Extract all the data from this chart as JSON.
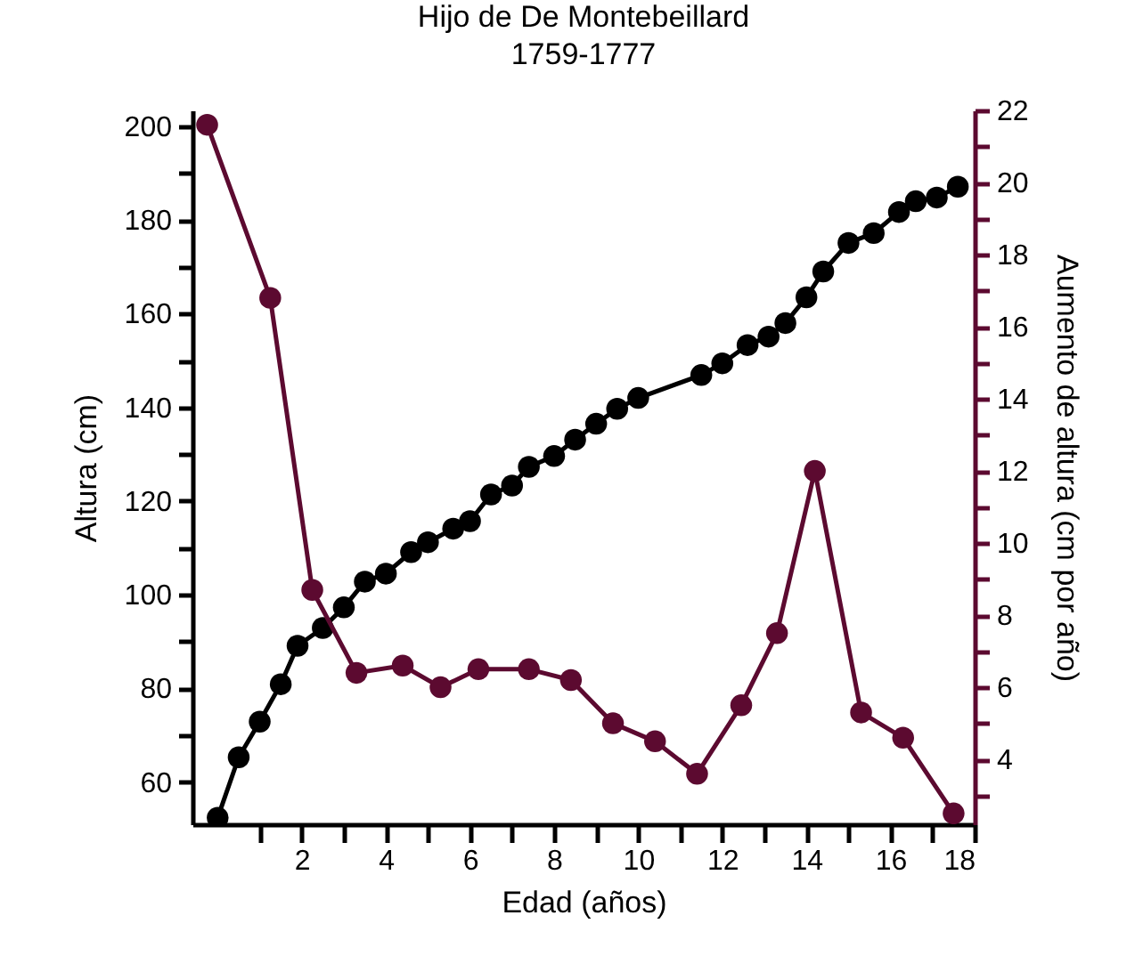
{
  "chart_data": {
    "type": "line",
    "title": "Hijo de De Montebeillard",
    "subtitle": "1759-1777",
    "xlabel": "Edad (años)",
    "ylabel": "Altura (cm)",
    "y2label": "Aumento de altura (cm por año)",
    "xlim": [
      -0.6,
      18
    ],
    "xticks": [
      {
        "value": 1,
        "label": null
      },
      2,
      {
        "value": 3,
        "label": null
      },
      4,
      {
        "value": 5,
        "label": null
      },
      6,
      {
        "value": 7,
        "label": null
      },
      8,
      {
        "value": 9,
        "label": null
      },
      10,
      {
        "value": 11,
        "label": null
      },
      12,
      {
        "value": 13,
        "label": null
      },
      14,
      {
        "value": 15,
        "label": null
      },
      16,
      {
        "value": 17,
        "label": null
      },
      18
    ],
    "ylim": [
      51,
      203.4
    ],
    "yticks": [
      {
        "value": 60,
        "label": "60"
      },
      {
        "value": 70,
        "label": null
      },
      {
        "value": 80,
        "label": "80"
      },
      {
        "value": 90,
        "label": null
      },
      {
        "value": 100,
        "label": "100"
      },
      {
        "value": 110,
        "label": null
      },
      {
        "value": 120,
        "label": "120"
      },
      {
        "value": 130,
        "label": null
      },
      {
        "value": 140,
        "label": "140"
      },
      {
        "value": 150,
        "label": null
      },
      {
        "value": 160,
        "label": "160"
      },
      {
        "value": 170,
        "label": null
      },
      {
        "value": 180,
        "label": "180"
      },
      {
        "value": 190,
        "label": null
      },
      {
        "value": 200,
        "label": "200"
      }
    ],
    "y2lim": [
      2.2,
      22
    ],
    "y2ticks": [
      {
        "value": 3,
        "label": null
      },
      4,
      {
        "value": 5,
        "label": null
      },
      6,
      {
        "value": 7,
        "label": null
      },
      8,
      {
        "value": 9,
        "label": null
      },
      10,
      {
        "value": 11,
        "label": null
      },
      12,
      {
        "value": 13,
        "label": null
      },
      14,
      {
        "value": 15,
        "label": null
      },
      16,
      {
        "value": 17,
        "label": null
      },
      18,
      {
        "value": 19,
        "label": null
      },
      20,
      {
        "value": 21,
        "label": null
      },
      22
    ],
    "marker": "circle",
    "grid": false,
    "series": [
      {
        "color": "#000000",
        "x": [
          0,
          0.5,
          1,
          1.5,
          1.9,
          2.5,
          3,
          3.5,
          4,
          4.6,
          5,
          5.6,
          6,
          6.5,
          7,
          7.4,
          8,
          8.5,
          9,
          9.5,
          10,
          11.5,
          12,
          12.6,
          13.1,
          13.5,
          14,
          14.4,
          15,
          15.6,
          16.2,
          16.6,
          17.1,
          17.6
        ],
        "values": [
          52.4,
          65.3,
          72.9,
          80.9,
          89.1,
          92.9,
          97.3,
          102.8,
          104.5,
          109.1,
          111.2,
          114.1,
          115.7,
          121.4,
          123.3,
          127.3,
          129.6,
          133.1,
          136.5,
          139.7,
          142,
          146.9,
          149.4,
          153.3,
          155.1,
          158,
          163.5,
          169,
          175.1,
          177.2,
          181.7,
          184,
          184.8,
          187.1
        ]
      },
      {
        "color": "#5c0a30",
        "axis": "y2",
        "x": [
          -0.25,
          1.25,
          2.25,
          3.3,
          4.4,
          5.3,
          6.2,
          7.4,
          8.4,
          9.4,
          10.4,
          11.4,
          12.45,
          13.3,
          14.2,
          15.3,
          16.3,
          17.5
        ],
        "values": [
          21.6,
          16.8,
          8.7,
          6.4,
          6.6,
          6.0,
          6.5,
          6.5,
          6.2,
          5.0,
          4.5,
          3.6,
          5.5,
          7.5,
          12.0,
          5.3,
          4.6,
          2.5
        ]
      }
    ]
  }
}
